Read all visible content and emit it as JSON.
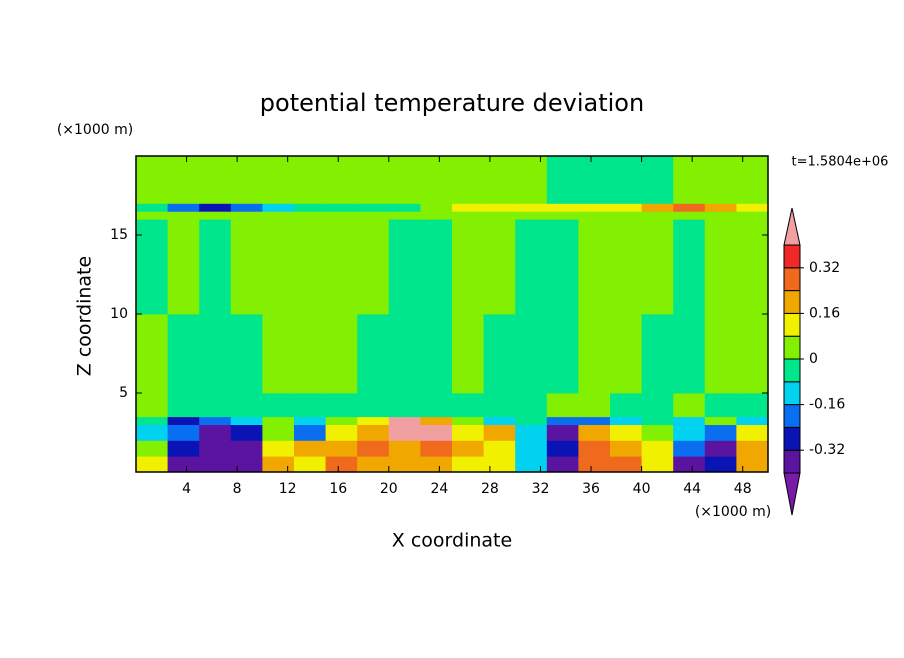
{
  "chart_data": {
    "type": "contour",
    "title": "potential temperature deviation",
    "x_label": "X coordinate",
    "y_label": "Z coordinate",
    "x_unit": "(×1000 m)",
    "y_unit": "(×1000 m)",
    "annotation": "t=1.5804e+06",
    "xlim": [
      0,
      50
    ],
    "ylim": [
      0,
      20
    ],
    "xticks": [
      4,
      8,
      12,
      16,
      20,
      24,
      28,
      32,
      36,
      40,
      44,
      48
    ],
    "yticks": [
      5,
      10,
      15
    ],
    "x": [
      0,
      2.5,
      5,
      7.5,
      10,
      12.5,
      15,
      17.5,
      20,
      22.5,
      25,
      27.5,
      30,
      32.5,
      35,
      37.5,
      40,
      42.5,
      45,
      47.5,
      50
    ],
    "y": [
      0,
      1,
      2,
      3,
      3.5,
      5,
      10,
      16,
      16.5,
      17,
      20
    ],
    "z": [
      [
        0.1,
        -0.36,
        -0.36,
        -0.36,
        0.2,
        0.1,
        0.28,
        0.2,
        0.2,
        0.2,
        0.1,
        0.1,
        -0.12,
        -0.36,
        0.28,
        0.28,
        0.1,
        -0.36,
        -0.28,
        0.2
      ],
      [
        0.04,
        -0.28,
        -0.36,
        -0.36,
        0.1,
        0.2,
        0.2,
        0.28,
        0.2,
        0.28,
        0.2,
        0.1,
        -0.12,
        -0.28,
        0.28,
        0.2,
        0.1,
        -0.2,
        -0.36,
        0.2
      ],
      [
        -0.12,
        -0.2,
        -0.36,
        -0.28,
        0.04,
        -0.2,
        0.1,
        0.2,
        0.44,
        0.44,
        0.1,
        0.2,
        -0.12,
        -0.36,
        0.2,
        0.1,
        0.04,
        -0.12,
        -0.2,
        0.1
      ],
      [
        -0.04,
        -0.28,
        -0.2,
        -0.12,
        0.04,
        -0.12,
        0.04,
        0.1,
        0.44,
        0.2,
        0.04,
        -0.12,
        -0.04,
        -0.2,
        -0.2,
        -0.12,
        -0.04,
        -0.12,
        0.04,
        -0.12
      ],
      [
        0.04,
        -0.04,
        -0.04,
        -0.04,
        -0.04,
        -0.04,
        -0.04,
        -0.04,
        -0.04,
        -0.04,
        -0.04,
        -0.04,
        -0.04,
        0.04,
        0.04,
        -0.04,
        -0.04,
        0.04,
        -0.04,
        -0.04
      ],
      [
        0.04,
        -0.04,
        -0.04,
        -0.04,
        0.04,
        0.04,
        0.04,
        -0.04,
        -0.04,
        -0.04,
        0.04,
        -0.04,
        -0.04,
        -0.04,
        0.04,
        0.04,
        -0.04,
        -0.04,
        0.04,
        0.04
      ],
      [
        -0.04,
        0.04,
        -0.04,
        0.04,
        0.04,
        0.04,
        0.04,
        0.04,
        -0.04,
        -0.04,
        0.04,
        0.04,
        -0.04,
        -0.04,
        0.04,
        0.04,
        0.04,
        -0.04,
        0.04,
        0.04
      ],
      [
        0.04,
        0.04,
        0.04,
        0.04,
        0.04,
        0.04,
        0.04,
        0.04,
        0.04,
        0.04,
        0.04,
        0.04,
        0.04,
        0.04,
        0.04,
        0.04,
        0.04,
        0.04,
        0.04,
        0.04
      ],
      [
        -0.04,
        -0.2,
        -0.28,
        -0.2,
        -0.12,
        -0.04,
        -0.04,
        -0.04,
        -0.04,
        0.04,
        0.1,
        0.1,
        0.1,
        0.1,
        0.1,
        0.1,
        0.2,
        0.28,
        0.2,
        0.1
      ],
      [
        0.04,
        0.04,
        0.04,
        0.04,
        0.04,
        0.04,
        0.04,
        0.04,
        0.04,
        0.04,
        0.04,
        0.04,
        0.04,
        -0.04,
        -0.04,
        -0.04,
        -0.04,
        0.04,
        0.04,
        0.04
      ]
    ],
    "colorbar": {
      "levels": [
        -0.4,
        -0.32,
        -0.24,
        -0.16,
        -0.08,
        0,
        0.08,
        0.16,
        0.24,
        0.32,
        0.4
      ],
      "colors": [
        "#7a1aa8",
        "#5a14a0",
        "#0a14b4",
        "#0a6ef0",
        "#00d2f0",
        "#00e68c",
        "#82f000",
        "#f0f000",
        "#f0a800",
        "#f06a1e",
        "#f02828",
        "#f0a0a0"
      ],
      "ticks": [
        -0.32,
        -0.16,
        0,
        0.16,
        0.32
      ]
    }
  }
}
